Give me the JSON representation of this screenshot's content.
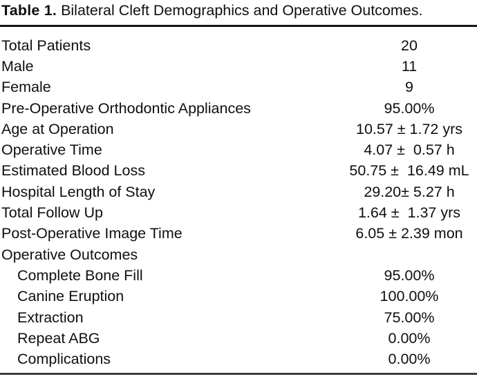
{
  "table": {
    "title_label": "Table 1.",
    "title_text": "Bilateral Cleft Demographics and Operative Outcomes.",
    "rows": [
      {
        "label": "Total Patients",
        "value": "20",
        "indent": false
      },
      {
        "label": "Male",
        "value": "11",
        "indent": false
      },
      {
        "label": "Female",
        "value": "9",
        "indent": false
      },
      {
        "label": "Pre-Operative Orthodontic Appliances",
        "value": "95.00%",
        "indent": false
      },
      {
        "label": "Age at Operation",
        "value": "10.57 ± 1.72 yrs",
        "indent": false
      },
      {
        "label": "Operative Time",
        "value": "4.07 ±  0.57 h",
        "indent": false
      },
      {
        "label": "Estimated Blood Loss",
        "value": "50.75 ±  16.49 mL",
        "indent": false
      },
      {
        "label": "Hospital Length of Stay",
        "value": "29.20± 5.27 h",
        "indent": false
      },
      {
        "label": "Total Follow Up",
        "value": "1.64 ±  1.37 yrs",
        "indent": false
      },
      {
        "label": "Post-Operative Image Time",
        "value": "6.05 ± 2.39 mon",
        "indent": false
      },
      {
        "label": "Operative Outcomes",
        "value": "",
        "indent": false
      },
      {
        "label": "Complete Bone Fill",
        "value": "95.00%",
        "indent": true
      },
      {
        "label": "Canine Eruption",
        "value": "100.00%",
        "indent": true
      },
      {
        "label": "Extraction",
        "value": "75.00%",
        "indent": true
      },
      {
        "label": "Repeat ABG",
        "value": "0.00%",
        "indent": true
      },
      {
        "label": "Complications",
        "value": "0.00%",
        "indent": true
      }
    ],
    "colors": {
      "text": "#0f0f0f",
      "top_rule": "#141414",
      "bottom_rule": "#3d3d3d",
      "background": "#ffffff"
    }
  }
}
